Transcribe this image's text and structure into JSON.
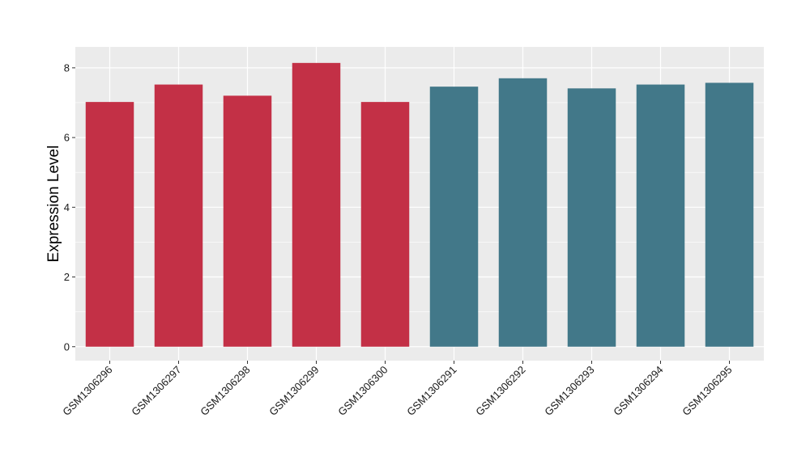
{
  "chart_data": {
    "type": "bar",
    "xlabel": "",
    "ylabel": "Expression Level",
    "ylim": [
      -0.4,
      8.6
    ],
    "yticks": [
      0,
      2,
      4,
      6,
      8
    ],
    "grid": true,
    "categories": [
      "GSM1306296",
      "GSM1306297",
      "GSM1306298",
      "GSM1306299",
      "GSM1306300",
      "GSM1306291",
      "GSM1306292",
      "GSM1306293",
      "GSM1306294",
      "GSM1306295"
    ],
    "values": [
      7.02,
      7.52,
      7.2,
      8.14,
      7.02,
      7.46,
      7.7,
      7.41,
      7.52,
      7.57
    ],
    "group_colors": [
      "#c33046",
      "#c33046",
      "#c33046",
      "#c33046",
      "#c33046",
      "#427889",
      "#427889",
      "#427889",
      "#427889",
      "#427889"
    ],
    "colors": {
      "panel_background": "#ebebeb",
      "gridline": "#ffffff",
      "group_a": "#c33046",
      "group_b": "#427889"
    }
  }
}
